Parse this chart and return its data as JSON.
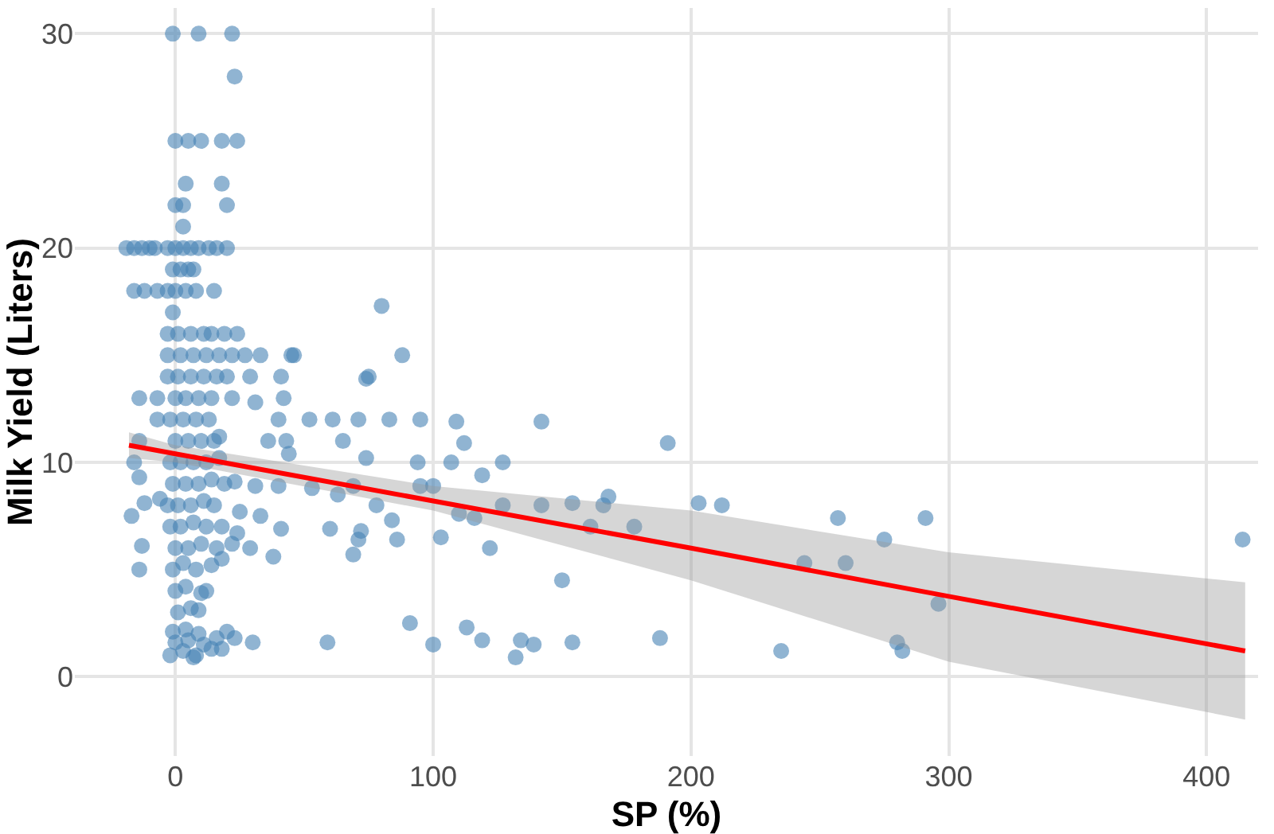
{
  "chart_data": {
    "type": "scatter",
    "xlabel": "SP (%)",
    "ylabel": "Milk Yield (Liters)",
    "xlim": [
      -39,
      420
    ],
    "ylim": [
      -3.7,
      31.2
    ],
    "xticks": [
      0,
      100,
      200,
      300,
      400
    ],
    "yticks": [
      0,
      10,
      20,
      30
    ],
    "grid": true,
    "marker": "circle",
    "series": [
      {
        "color": "#4682b4",
        "x": [
          -1,
          9,
          22,
          23,
          0,
          5,
          10,
          18,
          24,
          4,
          18,
          0,
          3,
          20,
          3,
          -19,
          -16,
          -13,
          -10,
          -8,
          -3,
          0,
          3,
          6,
          9,
          13,
          16,
          20,
          -1,
          2,
          5,
          7,
          -16,
          -12,
          -7,
          -3,
          0,
          4,
          8,
          15,
          -1,
          80,
          88,
          45,
          74,
          -2,
          3,
          8,
          14,
          0,
          5,
          11,
          16,
          -1,
          4,
          9,
          20,
          1,
          6,
          0,
          4,
          12,
          -1,
          3,
          8,
          14,
          0,
          5,
          10,
          16,
          -2,
          2,
          7,
          12,
          18,
          -3,
          1,
          6,
          11,
          15,
          -1,
          4,
          9,
          14,
          19,
          -2,
          2,
          7,
          12,
          17,
          0,
          5,
          10,
          15,
          -2,
          3,
          8,
          13,
          0,
          4,
          9,
          14,
          -3,
          1,
          6,
          11,
          16,
          -3,
          2,
          7,
          12,
          17,
          22,
          27,
          33,
          46,
          -3,
          1,
          6,
          11,
          14,
          19,
          24,
          20,
          29,
          41,
          75,
          22,
          31,
          42,
          40,
          52,
          61,
          71,
          83,
          95,
          65,
          74,
          94,
          36,
          43,
          44,
          17,
          23,
          31,
          40,
          53,
          63,
          69,
          78,
          95,
          60,
          69,
          71,
          72,
          84,
          86,
          38,
          41,
          33,
          25,
          22,
          29,
          24,
          18,
          10,
          9,
          91,
          59,
          30,
          23,
          18,
          7,
          -14,
          -7,
          -7,
          -14,
          -16,
          -14,
          -17,
          -12,
          -13,
          -14,
          -6,
          414,
          291,
          296,
          280,
          282,
          275,
          257,
          260,
          244,
          235,
          212,
          203,
          191,
          188,
          178,
          168,
          166,
          161,
          154,
          154,
          150,
          142,
          142,
          139,
          134,
          132,
          127,
          127,
          122,
          119,
          119,
          116,
          110,
          113,
          109,
          112,
          107,
          103,
          100,
          100
        ],
        "values": [
          30,
          30,
          30,
          28,
          25,
          25,
          25,
          25,
          25,
          23,
          23,
          22,
          22,
          22,
          21,
          20,
          20,
          20,
          20,
          20,
          20,
          20,
          20,
          20,
          20,
          20,
          20,
          20,
          19,
          19,
          19,
          19,
          18,
          18,
          18,
          18,
          18,
          18,
          18,
          18,
          17,
          17.3,
          15,
          15,
          13.9,
          1,
          1.2,
          1,
          1.3,
          1.6,
          1.7,
          1.5,
          1.8,
          2.1,
          2.2,
          2,
          2.1,
          3,
          3.2,
          4,
          4.2,
          4,
          5,
          5.3,
          5,
          5.2,
          6,
          6,
          6.2,
          6,
          7,
          7,
          7.2,
          7,
          7,
          8,
          8,
          8,
          8.2,
          8,
          9,
          9,
          9,
          9.2,
          9,
          10,
          10,
          10,
          10,
          10.2,
          11,
          11,
          11,
          11,
          12,
          12,
          12,
          12,
          13,
          13,
          13,
          13,
          14,
          14,
          14,
          14,
          14,
          15,
          15,
          15,
          15,
          15,
          15,
          15,
          15,
          15,
          16,
          16,
          16,
          16,
          16,
          16,
          16,
          14,
          14,
          14,
          14,
          13,
          12.8,
          13,
          12,
          12,
          12,
          12,
          12,
          12,
          11,
          10.2,
          10,
          11,
          11,
          10.4,
          11.2,
          9.1,
          8.9,
          8.9,
          8.8,
          8.5,
          8.9,
          8,
          8.9,
          6.9,
          5.7,
          6.4,
          6.8,
          7.3,
          6.4,
          5.6,
          6.9,
          7.5,
          7.7,
          6.2,
          6,
          6.7,
          5.5,
          3.9,
          3.1,
          2.5,
          1.6,
          1.6,
          1.8,
          1.3,
          0.9,
          13,
          13,
          12,
          11,
          10,
          9.3,
          7.5,
          8.1,
          6.1,
          5,
          8.3,
          6.4,
          7.4,
          3.4,
          1.6,
          1.2,
          6.4,
          7.4,
          5.3,
          5.3,
          1.2,
          8,
          8.1,
          10.9,
          1.8,
          7,
          8.4,
          8,
          7,
          8.1,
          1.6,
          4.5,
          8,
          11.9,
          1.5,
          1.7,
          0.9,
          8,
          10,
          6,
          9.4,
          1.7,
          7.4,
          7.6,
          2.3,
          11.9,
          10.9,
          10,
          6.5,
          8.9,
          1.5
        ]
      },
      {
        "type": "line",
        "color": "#ff0000",
        "line_style": "solid",
        "marker": "none",
        "x": [
          -18,
          0,
          100,
          200,
          300,
          415
        ],
        "values": [
          10.8,
          10.4,
          8.2,
          6.0,
          3.75,
          1.2
        ],
        "lower": [
          10.2,
          10.0,
          7.75,
          4.5,
          0.7,
          -2.0
        ],
        "upper": [
          11.4,
          10.8,
          8.9,
          7.75,
          5.8,
          4.4
        ]
      }
    ]
  }
}
